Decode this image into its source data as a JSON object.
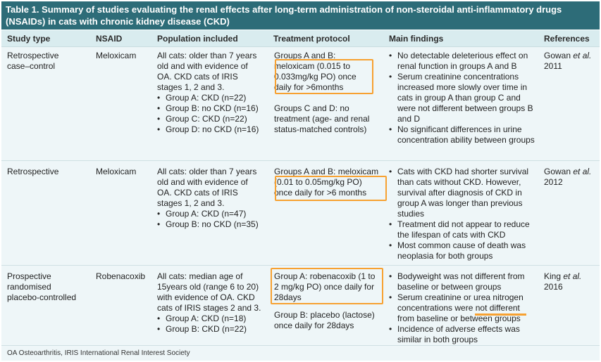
{
  "title": "Table 1. Summary of studies evaluating the renal effects after long-term administration of non-steroidal anti-inflammatory drugs (NSAIDs) in cats with chronic kidney disease (CKD)",
  "headers": {
    "study_type": "Study type",
    "nsaid": "NSAID",
    "population": "Population included",
    "protocol": "Treatment protocol",
    "findings": "Main findings",
    "references": "References"
  },
  "rows": [
    {
      "study_type": "Retrospective case–control",
      "nsaid": "Meloxicam",
      "population_intro": "All cats: older than 7 years old and with evidence of OA. CKD cats of IRIS stages 1, 2 and 3.",
      "population_groups": [
        "Group A: CKD (n=22)",
        "Group B: no CKD (n=16)",
        "Group C: CKD (n=22)",
        "Group D: no CKD (n=16)"
      ],
      "protocol_1a": "Groups A and B:",
      "protocol_1b": "meloxicam (0.015 to 0.033mg/kg PO) once daily for >6months",
      "protocol_2": "Groups C and D: no treatment (age- and renal status-matched controls)",
      "findings": [
        "No detectable deleterious effect on renal function in groups A and B",
        "Serum creatinine concentrations increased more slowly over time in cats in group A than group C and were not different between groups B and D",
        "No significant differences in urine concentration ability between groups"
      ],
      "ref_author": "Gowan",
      "ref_etal": "et al.",
      "ref_year": "2011"
    },
    {
      "study_type": "Retrospective",
      "nsaid": "Meloxicam",
      "population_intro": "All cats: older than 7 years old and with evidence of OA. CKD cats of IRIS stages 1, 2 and 3.",
      "population_groups": [
        "Group A: CKD (n=47)",
        "Group B: no CKD (n=35)"
      ],
      "protocol_1a": "Groups A and B: meloxicam",
      "protocol_1b": "(0.01 to 0.05mg/kg PO) once daily for >6 months",
      "findings": [
        "Cats with CKD had shorter survival than cats without CKD. However, survival after diagnosis of CKD in group A was longer than previous studies",
        "Treatment did not appear to reduce the lifespan of cats with CKD",
        "Most common cause of death was neoplasia for both groups"
      ],
      "ref_author": "Gowan",
      "ref_etal": "et al.",
      "ref_year": "2012"
    },
    {
      "study_type": "Prospective randomised placebo-controlled",
      "nsaid": "Robenacoxib",
      "population_intro": "All cats: median age of 15years old (range 6 to 20) with evidence of OA. CKD cats of IRIS stages 2 and 3.",
      "population_groups": [
        "Group A: CKD (n=18)",
        "Group B: CKD (n=22)"
      ],
      "protocol_1": "Group A: robenacoxib (1 to 2 mg/kg PO) once daily for 28days",
      "protocol_2": "Group B: placebo (lactose) once daily for 28days",
      "findings": [
        "Bodyweight was not different from baseline or between groups",
        "Serum creatinine or urea nitrogen concentrations were not different from baseline or between groups",
        "Incidence of adverse effects was similar in both groups"
      ],
      "ref_author": "King",
      "ref_etal": "et al.",
      "ref_year": "2016"
    }
  ],
  "footnote": "OA Osteoarthritis, IRIS International Renal Interest Society",
  "colors": {
    "header_bg": "#2d6c78",
    "column_header_bg": "#d9ecef",
    "body_bg": "#eef6f8",
    "highlight": "#f7a131"
  }
}
